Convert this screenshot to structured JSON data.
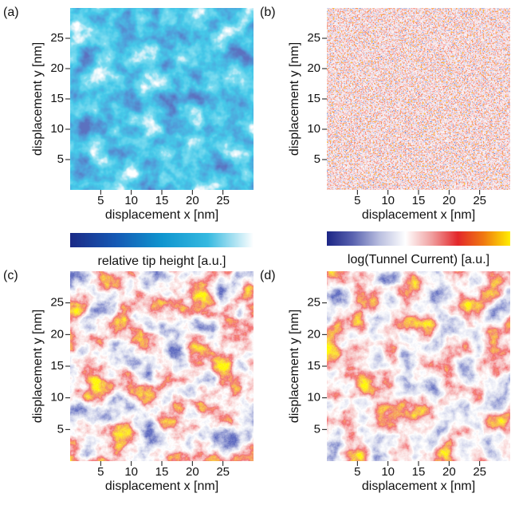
{
  "chart_data": [
    {
      "type": "heatmap",
      "panel_label": "(a)",
      "xlabel": "displacement x [nm]",
      "ylabel": "displacement y [nm]",
      "xlim": [
        0,
        30
      ],
      "ylim": [
        0,
        30
      ],
      "xticks": [
        5,
        10,
        15,
        20,
        25
      ],
      "yticks": [
        5,
        10,
        15,
        20,
        25
      ],
      "colormap": [
        "#1b2a86",
        "#1559b4",
        "#0f95cf",
        "#35b9e0",
        "#ffffff"
      ],
      "colorbar_label": "relative tip height [a.u.]"
    },
    {
      "type": "heatmap",
      "panel_label": "(b)",
      "xlabel": "displacement x [nm]",
      "ylabel": "displacement y [nm]",
      "xlim": [
        0,
        30
      ],
      "ylim": [
        0,
        30
      ],
      "xticks": [
        5,
        10,
        15,
        20,
        25
      ],
      "yticks": [
        5,
        10,
        15,
        20,
        25
      ],
      "colormap": [
        "#1c2585",
        "#5a63b0",
        "#b9bedf",
        "#ffffff",
        "#f0a0a0",
        "#e3272a",
        "#f07a10",
        "#ffee00"
      ],
      "colorbar_label": "log(Tunnel Current) [a.u.]"
    },
    {
      "type": "heatmap",
      "panel_label": "(c)",
      "xlabel": "displacement x [nm]",
      "ylabel": "displacement y [nm]",
      "xlim": [
        0,
        30
      ],
      "ylim": [
        0,
        30
      ],
      "xticks": [
        5,
        10,
        15,
        20,
        25
      ],
      "yticks": [
        5,
        10,
        15,
        20,
        25
      ],
      "colormap": [
        "#1c2585",
        "#5a63b0",
        "#b9bedf",
        "#ffffff",
        "#f0a0a0",
        "#e3272a",
        "#f07a10",
        "#ffee00"
      ]
    },
    {
      "type": "heatmap",
      "panel_label": "(d)",
      "xlabel": "displacement x [nm]",
      "ylabel": "displacement y [nm]",
      "xlim": [
        0,
        30
      ],
      "ylim": [
        0,
        30
      ],
      "xticks": [
        5,
        10,
        15,
        20,
        25
      ],
      "yticks": [
        5,
        10,
        15,
        20,
        25
      ],
      "colormap": [
        "#1c2585",
        "#5a63b0",
        "#b9bedf",
        "#ffffff",
        "#f0a0a0",
        "#e3272a",
        "#f07a10",
        "#ffee00"
      ]
    }
  ]
}
